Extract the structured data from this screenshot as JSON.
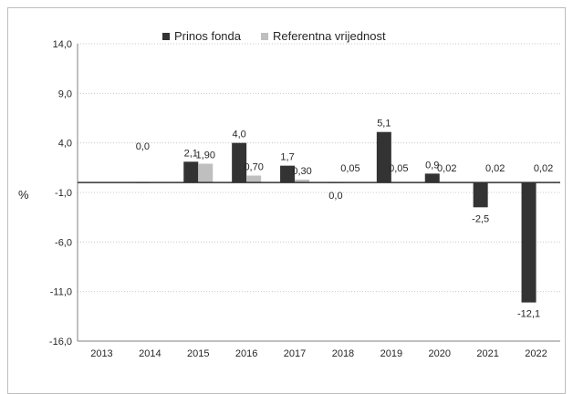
{
  "chart_data": {
    "type": "bar",
    "title": "",
    "xlabel": "",
    "ylabel": "%",
    "categories": [
      "2013",
      "2014",
      "2015",
      "2016",
      "2017",
      "2018",
      "2019",
      "2020",
      "2021",
      "2022"
    ],
    "ylim": [
      -16.0,
      14.0
    ],
    "yticks": [
      "14,0",
      "9,0",
      "4,0",
      "-1,0",
      "-6,0",
      "-11,0",
      "-16,0"
    ],
    "grid": true,
    "legend_position": "top",
    "series": [
      {
        "name": "Prinos fonda",
        "color": "#333333",
        "values": [
          null,
          0.0,
          2.1,
          4.0,
          1.7,
          0.0,
          5.1,
          0.9,
          -2.5,
          -12.1
        ],
        "labels": [
          "",
          "0,0",
          "2,1",
          "4,0",
          "1,7",
          "0,0",
          "5,1",
          "0,9",
          "-2,5",
          "-12,1"
        ]
      },
      {
        "name": "Referentna vrijednost",
        "color": "#bfbfbf",
        "values": [
          null,
          null,
          1.9,
          0.7,
          0.3,
          0.05,
          0.05,
          0.02,
          0.02,
          0.02
        ],
        "labels": [
          "",
          "",
          "1,90",
          "0,70",
          "0,30",
          "0,05",
          "0,05",
          "0,02",
          "0,02",
          "0,02"
        ]
      }
    ]
  }
}
